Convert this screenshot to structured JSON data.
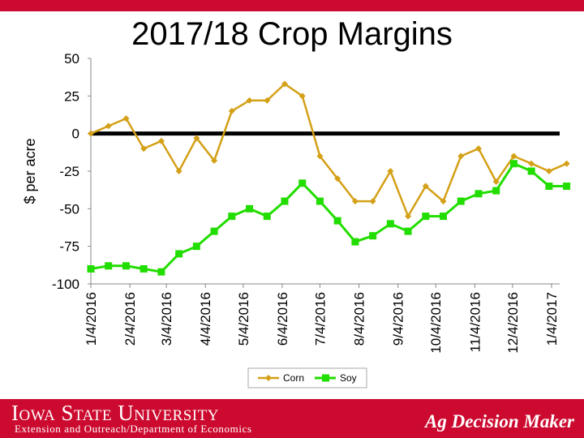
{
  "footer": {
    "university": "Iowa State University",
    "department": "Extension and Outreach/Department of Economics",
    "product": "Ag Decision Maker"
  },
  "chart_data": {
    "type": "line",
    "title": "2017/18 Crop Margins",
    "ylabel": "$ per acre",
    "xlabel": "",
    "ylim": [
      -100,
      50
    ],
    "yticks": [
      50,
      25,
      0,
      -25,
      -50,
      -75,
      -100
    ],
    "x_tick_labels": [
      "1/4/2016",
      "2/4/2016",
      "3/4/2016",
      "4/4/2016",
      "5/4/2016",
      "6/4/2016",
      "7/4/2016",
      "8/4/2016",
      "9/4/2016",
      "10/4/2016",
      "11/4/2016",
      "12/4/2016",
      "1/4/2017"
    ],
    "x": [
      "1/4/2016",
      "1/18/2016",
      "2/1/2016",
      "2/15/2016",
      "2/29/2016",
      "3/14/2016",
      "3/28/2016",
      "4/11/2016",
      "4/25/2016",
      "5/9/2016",
      "5/23/2016",
      "6/6/2016",
      "6/20/2016",
      "7/4/2016",
      "7/18/2016",
      "8/1/2016",
      "8/15/2016",
      "8/29/2016",
      "9/12/2016",
      "9/26/2016",
      "10/10/2016",
      "10/24/2016",
      "11/7/2016",
      "11/21/2016",
      "12/5/2016",
      "12/19/2016",
      "1/2/2017",
      "1/16/2017"
    ],
    "series": [
      {
        "name": "Corn",
        "color": "#d4a017",
        "marker": "diamond",
        "values": [
          0,
          5,
          10,
          -10,
          -5,
          -25,
          -3,
          -18,
          15,
          22,
          22,
          33,
          25,
          -15,
          -30,
          -45,
          -45,
          -25,
          -55,
          -35,
          -45,
          -15,
          -10,
          -32,
          -15,
          -20,
          -25,
          -20
        ]
      },
      {
        "name": "Soy",
        "color": "#22dd00",
        "marker": "square",
        "values": [
          -90,
          -88,
          -88,
          -90,
          -92,
          -80,
          -75,
          -65,
          -55,
          -50,
          -55,
          -45,
          -33,
          -45,
          -58,
          -72,
          -68,
          -60,
          -65,
          -55,
          -55,
          -45,
          -40,
          -38,
          -20,
          -25,
          -35,
          -35
        ]
      }
    ],
    "grid": false,
    "zero_line": true,
    "legend": "bottom-center"
  }
}
